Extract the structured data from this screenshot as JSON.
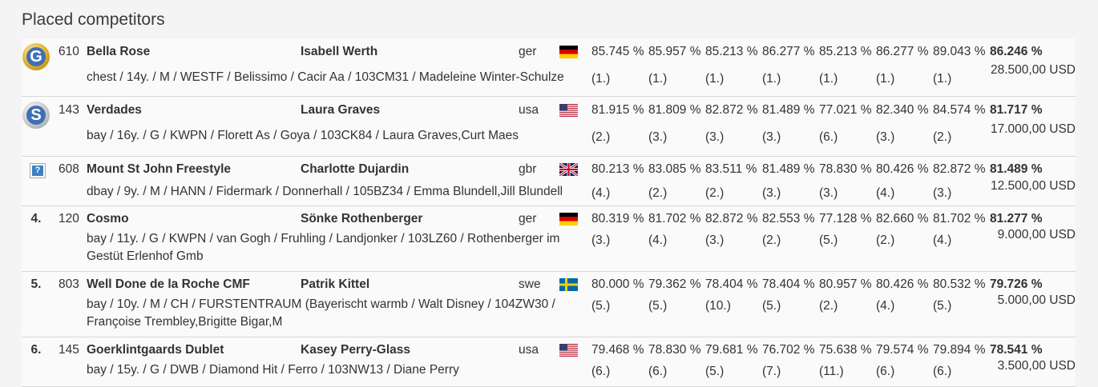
{
  "section_title": "Placed competitors",
  "competitors": [
    {
      "rank": "",
      "medal": "G",
      "num": "610",
      "horse": "Bella Rose",
      "rider": "Isabell Werth",
      "nation": "ger",
      "flag": "germany-flag",
      "scores": [
        "85.745 %",
        "85.957 %",
        "85.213 %",
        "86.277 %",
        "85.213 %",
        "86.277 %",
        "89.043 %"
      ],
      "total": "86.246 %",
      "prize": "28.500,00 USD",
      "details": "chest / 14y. / M / WESTF / Belissimo / Cacir Aa / 103CM31 / Madeleine Winter-Schulze",
      "places": [
        "(1.)",
        "(1.)",
        "(1.)",
        "(1.)",
        "(1.)",
        "(1.)",
        "(1.)"
      ]
    },
    {
      "rank": "",
      "medal": "S",
      "num": "143",
      "horse": "Verdades",
      "rider": "Laura Graves",
      "nation": "usa",
      "flag": "usa-flag",
      "scores": [
        "81.915 %",
        "81.809 %",
        "82.872 %",
        "81.489 %",
        "77.021 %",
        "82.340 %",
        "84.574 %"
      ],
      "total": "81.717 %",
      "prize": "17.000,00 USD",
      "details": "bay / 16y. / G / KWPN / Florett As / Goya / 103CK84 / Laura Graves,Curt Maes",
      "places": [
        "(2.)",
        "(3.)",
        "(3.)",
        "(3.)",
        "(6.)",
        "(3.)",
        "(2.)"
      ]
    },
    {
      "rank": "",
      "medal": "?",
      "num": "608",
      "horse": "Mount St John Freestyle",
      "rider": "Charlotte Dujardin",
      "nation": "gbr",
      "flag": "uk-flag",
      "scores": [
        "80.213 %",
        "83.085 %",
        "83.511 %",
        "81.489 %",
        "78.830 %",
        "80.426 %",
        "82.872 %"
      ],
      "total": "81.489 %",
      "prize": "12.500,00 USD",
      "details": "dbay / 9y. / M / HANN / Fidermark / Donnerhall / 105BZ34 / Emma Blundell,Jill Blundell",
      "places": [
        "(4.)",
        "(2.)",
        "(2.)",
        "(3.)",
        "(3.)",
        "(4.)",
        "(3.)"
      ]
    },
    {
      "rank": "4.",
      "medal": "",
      "num": "120",
      "horse": "Cosmo",
      "rider": "Sönke Rothenberger",
      "nation": "ger",
      "flag": "germany-flag",
      "scores": [
        "80.319 %",
        "81.702 %",
        "82.872 %",
        "82.553 %",
        "77.128 %",
        "82.660 %",
        "81.702 %"
      ],
      "total": "81.277 %",
      "prize": "9.000,00 USD",
      "details": "bay / 11y. / G / KWPN / van Gogh / Fruhling / Landjonker / 103LZ60 / Rothenberger im Gestüt Erlenhof Gmb",
      "places": [
        "(3.)",
        "(4.)",
        "(3.)",
        "(2.)",
        "(5.)",
        "(2.)",
        "(4.)"
      ]
    },
    {
      "rank": "5.",
      "medal": "",
      "num": "803",
      "horse": "Well Done de la Roche CMF",
      "rider": "Patrik Kittel",
      "nation": "swe",
      "flag": "sweden-flag",
      "scores": [
        "80.000 %",
        "79.362 %",
        "78.404 %",
        "78.404 %",
        "80.957 %",
        "80.426 %",
        "80.532 %"
      ],
      "total": "79.726 %",
      "prize": "5.000,00 USD",
      "details": "bay / 10y. / M / CH / FURSTENTRAUM (Bayerischt warmb / Walt Disney / 104ZW30 / Françoise Trembley,Brigitte Bigar,M",
      "places": [
        "(5.)",
        "(5.)",
        "(10.)",
        "(5.)",
        "(2.)",
        "(4.)",
        "(5.)"
      ]
    },
    {
      "rank": "6.",
      "medal": "",
      "num": "145",
      "horse": "Goerklintgaards Dublet",
      "rider": "Kasey Perry-Glass",
      "nation": "usa",
      "flag": "usa-flag",
      "scores": [
        "79.468 %",
        "78.830 %",
        "79.681 %",
        "76.702 %",
        "75.638 %",
        "79.574 %",
        "79.894 %"
      ],
      "total": "78.541 %",
      "prize": "3.500,00 USD",
      "details": "bay / 15y. / G / DWB / Diamond Hit / Ferro / 103NW13 / Diane Perry",
      "places": [
        "(6.)",
        "(6.)",
        "(5.)",
        "(7.)",
        "(11.)",
        "(6.)",
        "(6.)"
      ]
    }
  ]
}
